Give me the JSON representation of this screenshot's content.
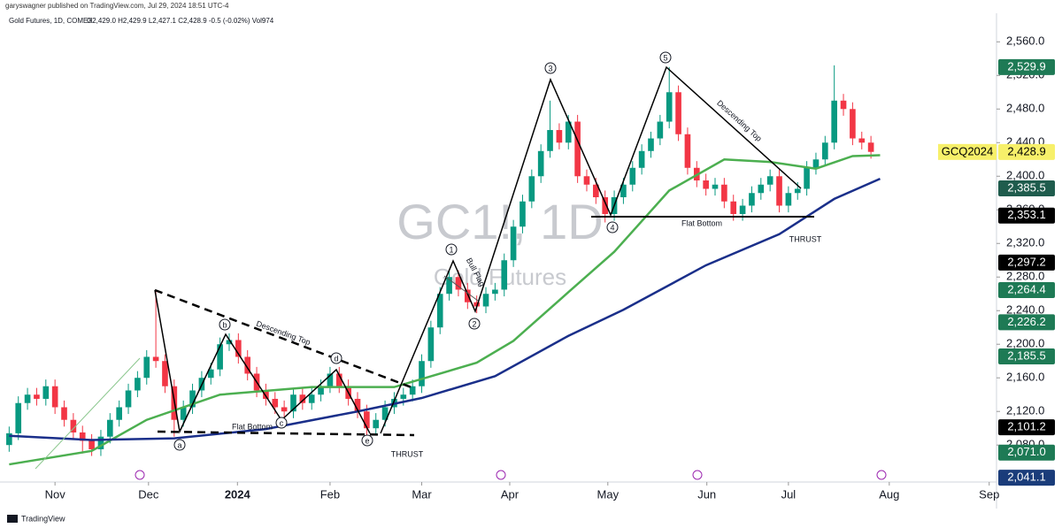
{
  "header": {
    "published": "garyswagner published on TradingView.com, Jul 29, 2024 18:51 UTC-4",
    "legend": "Gold Futures, 1D, COMEX",
    "ohlc": "O2,429.0 H2,429.9 L2,427.1 C2,428.9 -0.5 (-0.02%) Vol974"
  },
  "chart_data": {
    "type": "candlestick",
    "watermark": "GC1!, 1D",
    "watermark_subtitle": "Gold Futures",
    "symbol": "GCQ2024",
    "up_color": "#089981",
    "down_color": "#f23645",
    "open": [
      2080,
      2094,
      2130,
      2140,
      2135,
      2150,
      2125,
      2110,
      2095,
      2085,
      2075,
      2090,
      2110,
      2125,
      2145,
      2160,
      2185,
      2180,
      2150,
      2110,
      2125,
      2145,
      2160,
      2170,
      2200,
      2205,
      2185,
      2165,
      2145,
      2135,
      2125,
      2120,
      2140,
      2130,
      2140,
      2150,
      2165,
      2150,
      2135,
      2120,
      2100,
      2110,
      2125,
      2135,
      2140,
      2150,
      2180,
      2220,
      2260,
      2280,
      2265,
      2250,
      2245,
      2260,
      2265,
      2300,
      2340,
      2370,
      2400,
      2430,
      2455,
      2440,
      2465,
      2400,
      2390,
      2375,
      2355,
      2375,
      2390,
      2410,
      2430,
      2445,
      2465,
      2500,
      2450,
      2410,
      2395,
      2385,
      2390,
      2370,
      2355,
      2365,
      2380,
      2390,
      2400,
      2365,
      2380,
      2385,
      2410,
      2420,
      2440,
      2490,
      2480,
      2445,
      2440
    ],
    "high": [
      2102,
      2138,
      2148,
      2148,
      2158,
      2158,
      2133,
      2118,
      2103,
      2093,
      2098,
      2118,
      2133,
      2153,
      2168,
      2193,
      2265,
      2188,
      2158,
      2133,
      2153,
      2168,
      2178,
      2208,
      2213,
      2213,
      2193,
      2173,
      2153,
      2143,
      2133,
      2148,
      2148,
      2148,
      2158,
      2173,
      2173,
      2158,
      2143,
      2128,
      2118,
      2133,
      2143,
      2148,
      2158,
      2188,
      2228,
      2268,
      2288,
      2288,
      2273,
      2258,
      2268,
      2273,
      2308,
      2348,
      2378,
      2408,
      2438,
      2490,
      2463,
      2473,
      2473,
      2408,
      2398,
      2383,
      2383,
      2398,
      2418,
      2438,
      2453,
      2473,
      2530,
      2508,
      2458,
      2418,
      2403,
      2398,
      2398,
      2378,
      2373,
      2388,
      2398,
      2408,
      2408,
      2388,
      2393,
      2418,
      2428,
      2448,
      2532,
      2498,
      2488,
      2453,
      2448
    ],
    "low": [
      2072,
      2086,
      2122,
      2127,
      2127,
      2117,
      2102,
      2087,
      2070,
      2067,
      2067,
      2082,
      2102,
      2117,
      2137,
      2152,
      2172,
      2142,
      2090,
      2102,
      2117,
      2137,
      2152,
      2162,
      2192,
      2177,
      2157,
      2137,
      2127,
      2117,
      2112,
      2112,
      2122,
      2122,
      2132,
      2142,
      2142,
      2127,
      2112,
      2090,
      2092,
      2102,
      2117,
      2127,
      2132,
      2142,
      2172,
      2212,
      2252,
      2257,
      2242,
      2237,
      2237,
      2252,
      2257,
      2292,
      2332,
      2362,
      2392,
      2422,
      2432,
      2432,
      2392,
      2382,
      2367,
      2345,
      2347,
      2367,
      2382,
      2402,
      2422,
      2437,
      2457,
      2442,
      2402,
      2387,
      2377,
      2377,
      2362,
      2347,
      2347,
      2357,
      2372,
      2382,
      2357,
      2357,
      2372,
      2377,
      2402,
      2412,
      2432,
      2472,
      2437,
      2432,
      2421
    ],
    "close": [
      2094,
      2130,
      2140,
      2135,
      2150,
      2125,
      2110,
      2095,
      2085,
      2075,
      2090,
      2110,
      2125,
      2145,
      2160,
      2185,
      2180,
      2150,
      2110,
      2125,
      2145,
      2160,
      2170,
      2200,
      2205,
      2185,
      2165,
      2145,
      2135,
      2125,
      2120,
      2140,
      2130,
      2140,
      2150,
      2165,
      2150,
      2135,
      2120,
      2100,
      2110,
      2125,
      2135,
      2140,
      2150,
      2180,
      2220,
      2260,
      2280,
      2265,
      2250,
      2245,
      2260,
      2265,
      2300,
      2340,
      2370,
      2400,
      2430,
      2455,
      2440,
      2465,
      2400,
      2390,
      2375,
      2355,
      2375,
      2390,
      2410,
      2430,
      2445,
      2465,
      2500,
      2450,
      2410,
      2395,
      2385,
      2390,
      2370,
      2355,
      2365,
      2380,
      2390,
      2400,
      2365,
      2380,
      2385,
      2410,
      2420,
      2440,
      2490,
      2480,
      2445,
      2440,
      2429
    ],
    "moving_averages": [
      {
        "color": "#4caf50",
        "x": [
          0,
          9,
          15,
          23,
          33,
          42,
          51,
          55,
          61,
          66,
          72,
          78,
          83,
          88,
          92,
          95
        ],
        "values": [
          2057,
          2073,
          2110,
          2140,
          2149,
          2149,
          2178,
          2204,
          2262,
          2310,
          2383,
          2420,
          2417,
          2409,
          2424,
          2425
        ]
      },
      {
        "color": "#1a2f8a",
        "x": [
          0,
          9,
          18,
          28,
          38,
          45,
          53,
          61,
          67,
          76,
          84,
          90,
          95
        ],
        "values": [
          2091,
          2086,
          2088,
          2099,
          2120,
          2136,
          2162,
          2210,
          2241,
          2294,
          2331,
          2373,
          2397
        ]
      }
    ],
    "xlim": [
      -1,
      107.6
    ],
    "xticks": [
      {
        "value": 5,
        "label": "Nov"
      },
      {
        "value": 15.2,
        "label": "Dec"
      },
      {
        "value": 24.9,
        "label": "2024"
      },
      {
        "value": 35,
        "label": "Feb"
      },
      {
        "value": 45,
        "label": "Mar"
      },
      {
        "value": 54.6,
        "label": "Apr"
      },
      {
        "value": 65.3,
        "label": "May"
      },
      {
        "value": 76.1,
        "label": "Jun"
      },
      {
        "value": 85,
        "label": "Jul"
      },
      {
        "value": 96,
        "label": "Aug"
      },
      {
        "value": 106.9,
        "label": "Sep"
      }
    ],
    "ylim": [
      2036,
      2594
    ],
    "yticks": [
      {
        "value": 2080,
        "label": "2,080.0"
      },
      {
        "value": 2120,
        "label": "2,120.0"
      },
      {
        "value": 2160,
        "label": "2,160.0"
      },
      {
        "value": 2200,
        "label": "2,200.0"
      },
      {
        "value": 2240,
        "label": "2,240.0"
      },
      {
        "value": 2280,
        "label": "2,280.0"
      },
      {
        "value": 2320,
        "label": "2,320.0"
      },
      {
        "value": 2360,
        "label": "2,360.0"
      },
      {
        "value": 2400,
        "label": "2,400.0"
      },
      {
        "value": 2440,
        "label": "2,440.0"
      },
      {
        "value": 2480,
        "label": "2,480.0"
      },
      {
        "value": 2520,
        "label": "2,520.0"
      },
      {
        "value": 2560,
        "label": "2,560.0"
      }
    ],
    "price_tags": [
      {
        "value": 2529.9,
        "label": "2,529.9",
        "color": "#1e7a55"
      },
      {
        "value": 2428.9,
        "label": "2,428.9",
        "color": "#f7f06a"
      },
      {
        "value": 2385.5,
        "label": "2,385.5",
        "color": "#1f5c4d"
      },
      {
        "value": 2353.1,
        "label": "2,353.1",
        "color": "#000000"
      },
      {
        "value": 2297.2,
        "label": "2,297.2",
        "color": "#000000"
      },
      {
        "value": 2264.4,
        "label": "2,264.4",
        "color": "#1e7a55"
      },
      {
        "value": 2226.2,
        "label": "2,226.2",
        "color": "#1e7a55"
      },
      {
        "value": 2185.5,
        "label": "2,185.5",
        "color": "#1e7a55"
      },
      {
        "value": 2101.2,
        "label": "2,101.2",
        "color": "#000000"
      },
      {
        "value": 2071.0,
        "label": "2,071.0",
        "color": "#1e7a55"
      },
      {
        "value": 2041.1,
        "label": "2,041.1",
        "color": "#1a3c7a"
      }
    ],
    "annotations": [
      "Descending Top",
      "Flat Bottom",
      "THRUST",
      "Bull Flag",
      "Descending Top",
      "Flat Bottom",
      "THRUST"
    ],
    "wave_labels": [
      "a",
      "b",
      "c",
      "d",
      "e",
      "1",
      "2",
      "3",
      "4",
      "5"
    ]
  },
  "footer": {
    "brand": "TradingView"
  }
}
